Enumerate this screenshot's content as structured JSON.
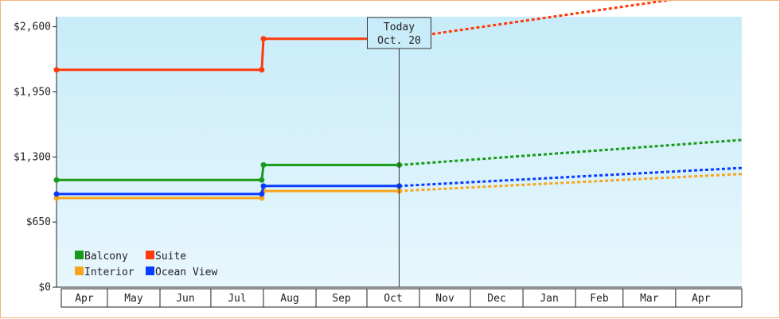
{
  "chart_data": {
    "type": "line",
    "style": "step-line with projected (dotted) continuation",
    "y_unit": "$",
    "yticks": [
      "$0",
      "$650",
      "$1,300",
      "$1,950",
      "$2,600"
    ],
    "ytick_values": [
      0,
      650,
      1300,
      1950,
      2600
    ],
    "ylim": [
      0,
      2700
    ],
    "x_start": "2021-04-01",
    "x_end": "2022-05-10",
    "months": [
      "Apr",
      "May",
      "Jun",
      "Jul",
      "Aug",
      "Sep",
      "Oct",
      "Nov",
      "Dec",
      "Jan",
      "Feb",
      "Mar",
      "Apr"
    ],
    "today": {
      "line1": "Today",
      "line2": "Oct. 20",
      "date": "2021-10-20"
    },
    "grid": false,
    "legend_position": "bottom-left",
    "series": [
      {
        "name": "Balcony",
        "color": "#1a9a1a",
        "actual": [
          [
            "2021-04-01",
            1070
          ],
          [
            "2021-07-31",
            1070
          ],
          [
            "2021-08-01",
            1220
          ],
          [
            "2021-10-20",
            1220
          ]
        ],
        "markers": [
          "2021-04-01",
          "2021-07-31",
          "2021-08-01",
          "2021-10-20"
        ],
        "projected": [
          [
            "2021-10-20",
            1220
          ],
          [
            "2022-05-10",
            1470
          ]
        ]
      },
      {
        "name": "Suite",
        "color": "#ff3a0a",
        "actual": [
          [
            "2021-04-01",
            2170
          ],
          [
            "2021-07-31",
            2170
          ],
          [
            "2021-08-01",
            2480
          ],
          [
            "2021-10-20",
            2480
          ]
        ],
        "markers": [
          "2021-04-01",
          "2021-07-31",
          "2021-08-01",
          "2021-10-20"
        ],
        "projected": [
          [
            "2021-10-20",
            2480
          ],
          [
            "2022-05-10",
            2970
          ]
        ]
      },
      {
        "name": "Interior",
        "color": "#f7a51c",
        "actual": [
          [
            "2021-04-01",
            890
          ],
          [
            "2021-07-31",
            890
          ],
          [
            "2021-08-01",
            960
          ],
          [
            "2021-10-20",
            960
          ]
        ],
        "markers": [
          "2021-04-01",
          "2021-07-31",
          "2021-08-01",
          "2021-10-20"
        ],
        "projected": [
          [
            "2021-10-20",
            960
          ],
          [
            "2022-05-10",
            1130
          ]
        ]
      },
      {
        "name": "Ocean View",
        "color": "#0a3cff",
        "actual": [
          [
            "2021-04-01",
            930
          ],
          [
            "2021-07-31",
            930
          ],
          [
            "2021-08-01",
            1010
          ],
          [
            "2021-10-20",
            1010
          ]
        ],
        "markers": [
          "2021-04-01",
          "2021-07-31",
          "2021-08-01",
          "2021-10-20"
        ],
        "projected": [
          [
            "2021-10-20",
            1010
          ],
          [
            "2022-05-10",
            1190
          ]
        ]
      }
    ],
    "legend_layout": [
      [
        "Balcony",
        "Suite"
      ],
      [
        "Interior",
        "Ocean View"
      ]
    ]
  }
}
